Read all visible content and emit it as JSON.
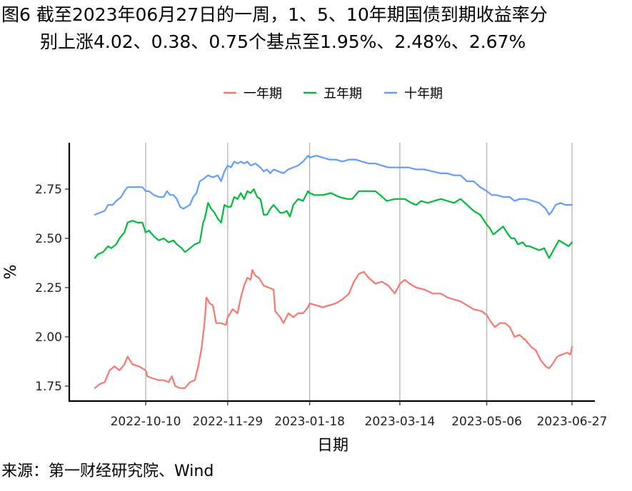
{
  "title": {
    "line1": "图6  截至2023年06月27日的一周，1、5、10年期国债到期收益率分",
    "line2": "别上涨4.02、0.38、0.75个基点至1.95%、2.48%、2.67%"
  },
  "source": "来源：第一财经研究院、Wind",
  "chart_data": {
    "type": "line",
    "xlabel": "日期",
    "ylabel": "%",
    "x_ticks": [
      "2022-10-10",
      "2022-11-29",
      "2023-01-18",
      "2023-03-14",
      "2023-05-06",
      "2023-06-27"
    ],
    "x_tick_days": [
      0,
      50,
      100,
      155,
      208,
      260
    ],
    "x_range_days": [
      -31,
      260
    ],
    "x_range_dates": [
      "2022-09-09",
      "2023-06-27"
    ],
    "y_ticks": [
      "1.75",
      "2.00",
      "2.25",
      "2.50",
      "2.75"
    ],
    "ylim": [
      1.7,
      2.95
    ],
    "grid": "vertical lines at x ticks",
    "legend_position": "top",
    "series": [
      {
        "name": "一年期",
        "color": "#F8766D",
        "points": [
          [
            -31,
            1.74
          ],
          [
            -28,
            1.76
          ],
          [
            -25,
            1.77
          ],
          [
            -22,
            1.83
          ],
          [
            -19,
            1.85
          ],
          [
            -16,
            1.83
          ],
          [
            -13,
            1.86
          ],
          [
            -11,
            1.9
          ],
          [
            -8,
            1.86
          ],
          [
            -4,
            1.85
          ],
          [
            0,
            1.83
          ],
          [
            1,
            1.8
          ],
          [
            4,
            1.79
          ],
          [
            8,
            1.78
          ],
          [
            11,
            1.78
          ],
          [
            14,
            1.77
          ],
          [
            16,
            1.8
          ],
          [
            18,
            1.75
          ],
          [
            21,
            1.74
          ],
          [
            24,
            1.74
          ],
          [
            27,
            1.77
          ],
          [
            30,
            1.78
          ],
          [
            32,
            1.85
          ],
          [
            34,
            1.94
          ],
          [
            36,
            2.08
          ],
          [
            37,
            2.2
          ],
          [
            39,
            2.17
          ],
          [
            41,
            2.16
          ],
          [
            43,
            2.07
          ],
          [
            46,
            2.07
          ],
          [
            49,
            2.06
          ],
          [
            50,
            2.1
          ],
          [
            53,
            2.14
          ],
          [
            56,
            2.12
          ],
          [
            58,
            2.2
          ],
          [
            60,
            2.26
          ],
          [
            62,
            2.3
          ],
          [
            64,
            2.29
          ],
          [
            65,
            2.34
          ],
          [
            67,
            2.31
          ],
          [
            69,
            2.3
          ],
          [
            72,
            2.26
          ],
          [
            75,
            2.25
          ],
          [
            78,
            2.24
          ],
          [
            79,
            2.13
          ],
          [
            82,
            2.1
          ],
          [
            84,
            2.07
          ],
          [
            87,
            2.12
          ],
          [
            90,
            2.1
          ],
          [
            93,
            2.12
          ],
          [
            96,
            2.12
          ],
          [
            99,
            2.15
          ],
          [
            100,
            2.17
          ],
          [
            104,
            2.16
          ],
          [
            108,
            2.15
          ],
          [
            112,
            2.16
          ],
          [
            116,
            2.17
          ],
          [
            120,
            2.19
          ],
          [
            124,
            2.22
          ],
          [
            127,
            2.28
          ],
          [
            130,
            2.32
          ],
          [
            133,
            2.33
          ],
          [
            136,
            2.3
          ],
          [
            140,
            2.27
          ],
          [
            144,
            2.28
          ],
          [
            148,
            2.26
          ],
          [
            152,
            2.22
          ],
          [
            155,
            2.27
          ],
          [
            158,
            2.29
          ],
          [
            161,
            2.27
          ],
          [
            165,
            2.25
          ],
          [
            170,
            2.24
          ],
          [
            175,
            2.22
          ],
          [
            180,
            2.22
          ],
          [
            184,
            2.2
          ],
          [
            188,
            2.19
          ],
          [
            192,
            2.18
          ],
          [
            196,
            2.16
          ],
          [
            200,
            2.14
          ],
          [
            205,
            2.13
          ],
          [
            208,
            2.11
          ],
          [
            211,
            2.07
          ],
          [
            213,
            2.05
          ],
          [
            216,
            2.07
          ],
          [
            219,
            2.07
          ],
          [
            222,
            2.05
          ],
          [
            225,
            2.0
          ],
          [
            228,
            2.01
          ],
          [
            232,
            1.98
          ],
          [
            235,
            1.95
          ],
          [
            238,
            1.93
          ],
          [
            241,
            1.88
          ],
          [
            244,
            1.85
          ],
          [
            246,
            1.84
          ],
          [
            248,
            1.86
          ],
          [
            251,
            1.9
          ],
          [
            254,
            1.91
          ],
          [
            257,
            1.92
          ],
          [
            259,
            1.91
          ],
          [
            260,
            1.95
          ]
        ]
      },
      {
        "name": "五年期",
        "color": "#00BA38",
        "points": [
          [
            -31,
            2.4
          ],
          [
            -29,
            2.42
          ],
          [
            -26,
            2.43
          ],
          [
            -23,
            2.46
          ],
          [
            -21,
            2.45
          ],
          [
            -18,
            2.47
          ],
          [
            -16,
            2.5
          ],
          [
            -13,
            2.53
          ],
          [
            -11,
            2.58
          ],
          [
            -8,
            2.59
          ],
          [
            -5,
            2.58
          ],
          [
            -2,
            2.58
          ],
          [
            0,
            2.53
          ],
          [
            2,
            2.54
          ],
          [
            5,
            2.51
          ],
          [
            8,
            2.49
          ],
          [
            11,
            2.5
          ],
          [
            14,
            2.48
          ],
          [
            17,
            2.49
          ],
          [
            19,
            2.47
          ],
          [
            22,
            2.45
          ],
          [
            24,
            2.43
          ],
          [
            27,
            2.45
          ],
          [
            30,
            2.47
          ],
          [
            33,
            2.48
          ],
          [
            35,
            2.58
          ],
          [
            36,
            2.6
          ],
          [
            38,
            2.68
          ],
          [
            40,
            2.65
          ],
          [
            42,
            2.63
          ],
          [
            44,
            2.6
          ],
          [
            46,
            2.58
          ],
          [
            48,
            2.67
          ],
          [
            50,
            2.66
          ],
          [
            52,
            2.66
          ],
          [
            54,
            2.71
          ],
          [
            56,
            2.7
          ],
          [
            58,
            2.73
          ],
          [
            60,
            2.7
          ],
          [
            62,
            2.74
          ],
          [
            64,
            2.73
          ],
          [
            66,
            2.75
          ],
          [
            68,
            2.71
          ],
          [
            70,
            2.7
          ],
          [
            72,
            2.62
          ],
          [
            74,
            2.62
          ],
          [
            76,
            2.65
          ],
          [
            78,
            2.67
          ],
          [
            80,
            2.65
          ],
          [
            82,
            2.63
          ],
          [
            84,
            2.63
          ],
          [
            86,
            2.64
          ],
          [
            88,
            2.61
          ],
          [
            90,
            2.67
          ],
          [
            93,
            2.7
          ],
          [
            96,
            2.69
          ],
          [
            99,
            2.74
          ],
          [
            100,
            2.73
          ],
          [
            103,
            2.72
          ],
          [
            108,
            2.72
          ],
          [
            113,
            2.73
          ],
          [
            118,
            2.71
          ],
          [
            123,
            2.7
          ],
          [
            126,
            2.7
          ],
          [
            130,
            2.74
          ],
          [
            135,
            2.74
          ],
          [
            140,
            2.74
          ],
          [
            143,
            2.72
          ],
          [
            147,
            2.69
          ],
          [
            152,
            2.7
          ],
          [
            155,
            2.7
          ],
          [
            158,
            2.7
          ],
          [
            162,
            2.68
          ],
          [
            165,
            2.67
          ],
          [
            168,
            2.69
          ],
          [
            172,
            2.68
          ],
          [
            176,
            2.69
          ],
          [
            180,
            2.7
          ],
          [
            184,
            2.69
          ],
          [
            188,
            2.68
          ],
          [
            192,
            2.7
          ],
          [
            196,
            2.67
          ],
          [
            200,
            2.64
          ],
          [
            204,
            2.62
          ],
          [
            208,
            2.57
          ],
          [
            210,
            2.55
          ],
          [
            212,
            2.52
          ],
          [
            215,
            2.54
          ],
          [
            218,
            2.56
          ],
          [
            221,
            2.52
          ],
          [
            223,
            2.5
          ],
          [
            225,
            2.5
          ],
          [
            227,
            2.47
          ],
          [
            230,
            2.48
          ],
          [
            232,
            2.46
          ],
          [
            234,
            2.46
          ],
          [
            237,
            2.45
          ],
          [
            240,
            2.44
          ],
          [
            243,
            2.45
          ],
          [
            246,
            2.4
          ],
          [
            248,
            2.43
          ],
          [
            250,
            2.46
          ],
          [
            252,
            2.49
          ],
          [
            254,
            2.48
          ],
          [
            256,
            2.47
          ],
          [
            258,
            2.46
          ],
          [
            260,
            2.48
          ]
        ]
      },
      {
        "name": "十年期",
        "color": "#619CFF",
        "points": [
          [
            -31,
            2.62
          ],
          [
            -28,
            2.63
          ],
          [
            -25,
            2.64
          ],
          [
            -23,
            2.67
          ],
          [
            -20,
            2.67
          ],
          [
            -18,
            2.69
          ],
          [
            -15,
            2.71
          ],
          [
            -13,
            2.74
          ],
          [
            -11,
            2.76
          ],
          [
            -8,
            2.76
          ],
          [
            -5,
            2.76
          ],
          [
            -2,
            2.76
          ],
          [
            0,
            2.74
          ],
          [
            2,
            2.74
          ],
          [
            5,
            2.72
          ],
          [
            8,
            2.71
          ],
          [
            11,
            2.71
          ],
          [
            13,
            2.74
          ],
          [
            15,
            2.72
          ],
          [
            17,
            2.72
          ],
          [
            19,
            2.7
          ],
          [
            21,
            2.66
          ],
          [
            23,
            2.65
          ],
          [
            25,
            2.66
          ],
          [
            27,
            2.67
          ],
          [
            29,
            2.71
          ],
          [
            31,
            2.73
          ],
          [
            33,
            2.79
          ],
          [
            35,
            2.8
          ],
          [
            38,
            2.82
          ],
          [
            41,
            2.81
          ],
          [
            44,
            2.82
          ],
          [
            46,
            2.79
          ],
          [
            48,
            2.84
          ],
          [
            50,
            2.87
          ],
          [
            52,
            2.86
          ],
          [
            54,
            2.89
          ],
          [
            56,
            2.88
          ],
          [
            58,
            2.89
          ],
          [
            60,
            2.88
          ],
          [
            62,
            2.89
          ],
          [
            64,
            2.87
          ],
          [
            67,
            2.88
          ],
          [
            70,
            2.86
          ],
          [
            72,
            2.84
          ],
          [
            74,
            2.85
          ],
          [
            76,
            2.83
          ],
          [
            78,
            2.85
          ],
          [
            81,
            2.84
          ],
          [
            84,
            2.83
          ],
          [
            87,
            2.85
          ],
          [
            90,
            2.86
          ],
          [
            93,
            2.87
          ],
          [
            96,
            2.89
          ],
          [
            99,
            2.92
          ],
          [
            100,
            2.91
          ],
          [
            104,
            2.92
          ],
          [
            108,
            2.91
          ],
          [
            112,
            2.9
          ],
          [
            116,
            2.9
          ],
          [
            120,
            2.89
          ],
          [
            124,
            2.9
          ],
          [
            128,
            2.9
          ],
          [
            132,
            2.89
          ],
          [
            136,
            2.88
          ],
          [
            140,
            2.88
          ],
          [
            144,
            2.87
          ],
          [
            148,
            2.86
          ],
          [
            152,
            2.86
          ],
          [
            155,
            2.86
          ],
          [
            160,
            2.86
          ],
          [
            165,
            2.85
          ],
          [
            170,
            2.85
          ],
          [
            175,
            2.84
          ],
          [
            180,
            2.83
          ],
          [
            184,
            2.83
          ],
          [
            188,
            2.82
          ],
          [
            192,
            2.82
          ],
          [
            196,
            2.79
          ],
          [
            200,
            2.79
          ],
          [
            204,
            2.76
          ],
          [
            208,
            2.74
          ],
          [
            211,
            2.72
          ],
          [
            214,
            2.72
          ],
          [
            218,
            2.71
          ],
          [
            222,
            2.71
          ],
          [
            225,
            2.69
          ],
          [
            228,
            2.7
          ],
          [
            232,
            2.7
          ],
          [
            236,
            2.69
          ],
          [
            240,
            2.68
          ],
          [
            244,
            2.65
          ],
          [
            246,
            2.62
          ],
          [
            248,
            2.64
          ],
          [
            250,
            2.67
          ],
          [
            253,
            2.68
          ],
          [
            256,
            2.67
          ],
          [
            258,
            2.67
          ],
          [
            260,
            2.67
          ]
        ]
      }
    ]
  }
}
